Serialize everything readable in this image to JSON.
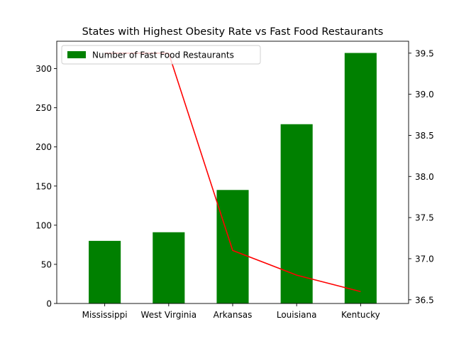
{
  "chart_data": {
    "type": "bar",
    "title": "States with Highest Obesity Rate vs Fast Food Restaurants",
    "categories": [
      "Mississippi",
      "West Virginia",
      "Arkansas",
      "Louisiana",
      "Kentucky"
    ],
    "series": [
      {
        "name": "Number of Fast Food Restaurants",
        "type": "bar",
        "axis": "left",
        "values": [
          80,
          91,
          145,
          229,
          320
        ],
        "color": "#008000"
      },
      {
        "type": "line",
        "axis": "right",
        "values": [
          39.5,
          39.5,
          37.1,
          36.8,
          36.6
        ],
        "color": "#ff0000"
      }
    ],
    "y_left": {
      "label": "",
      "ylim": [
        0,
        335
      ],
      "ticks": [
        0,
        50,
        100,
        150,
        200,
        250,
        300
      ],
      "tick_labels": [
        "0",
        "50",
        "100",
        "150",
        "200",
        "250",
        "300"
      ]
    },
    "y_right": {
      "label": "",
      "ylim": [
        36.455,
        39.645
      ],
      "ticks": [
        36.5,
        37.0,
        37.5,
        38.0,
        38.5,
        39.0,
        39.5
      ],
      "tick_labels": [
        "36.5",
        "37.0",
        "37.5",
        "38.0",
        "38.5",
        "39.0",
        "39.5"
      ]
    },
    "xlabel": "",
    "legend": {
      "position": "top-left",
      "entries": [
        "Number of Fast Food Restaurants"
      ]
    },
    "grid": false
  }
}
